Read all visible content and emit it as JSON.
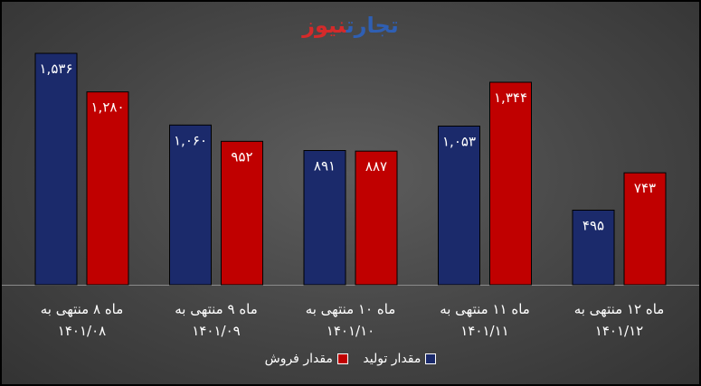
{
  "logo": {
    "part1": "تجارت",
    "part2": "نیوز"
  },
  "colors": {
    "production": "#1b2a6b",
    "sales": "#c00000",
    "text": "#ffffff"
  },
  "chart_data": {
    "type": "bar",
    "categories": [
      [
        "ماه ۸ منتهی به",
        "۱۴۰۱/۰۸"
      ],
      [
        "ماه ۹ منتهی به",
        "۱۴۰۱/۰۹"
      ],
      [
        "ماه ۱۰ منتهی به",
        "۱۴۰۱/۱۰"
      ],
      [
        "ماه ۱۱ منتهی به",
        "۱۴۰۱/۱۱"
      ],
      [
        "ماه ۱۲ منتهی به",
        "۱۴۰۱/۱۲"
      ]
    ],
    "series": [
      {
        "name": "مقدار تولید",
        "values": [
          1536,
          1060,
          891,
          1053,
          495
        ],
        "labels": [
          "۱,۵۳۶",
          "۱,۰۶۰",
          "۸۹۱",
          "۱,۰۵۳",
          "۴۹۵"
        ]
      },
      {
        "name": "مقدار فروش",
        "values": [
          1280,
          952,
          887,
          1344,
          743
        ],
        "labels": [
          "۱,۲۸۰",
          "۹۵۲",
          "۸۸۷",
          "۱,۳۴۴",
          "۷۴۳"
        ]
      }
    ],
    "ylim": [
      0,
      1536
    ],
    "grid": false,
    "legend": "bottom",
    "title": "",
    "xlabel": "",
    "ylabel": ""
  }
}
